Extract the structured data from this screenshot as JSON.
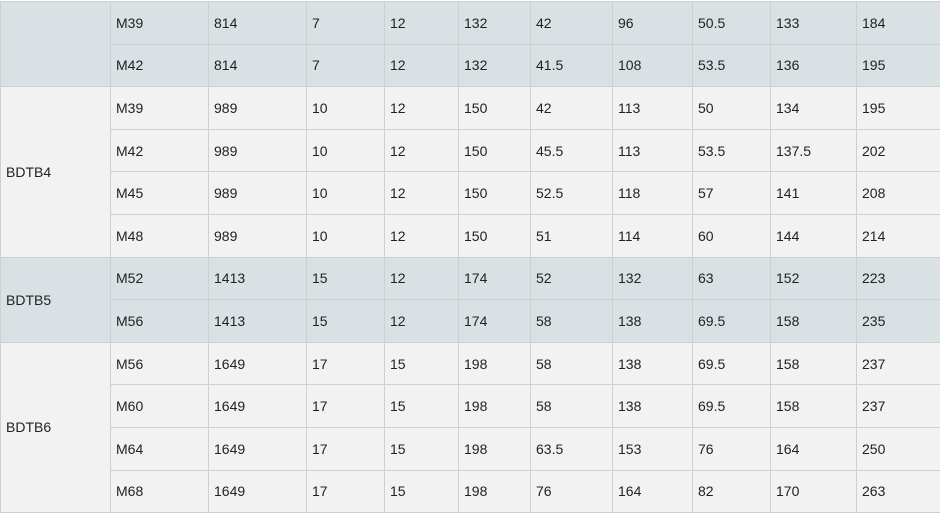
{
  "colors": {
    "shaded": "#d9e1e4",
    "light": "#f2f2f2",
    "border": "#cfcfcf"
  },
  "groups": [
    {
      "label": "",
      "shaded": true,
      "rows": [
        [
          "M39",
          "814",
          "7",
          "12",
          "132",
          "42",
          "96",
          "50.5",
          "133",
          "184"
        ],
        [
          "M42",
          "814",
          "7",
          "12",
          "132",
          "41.5",
          "108",
          "53.5",
          "136",
          "195"
        ]
      ]
    },
    {
      "label": "BDTB4",
      "shaded": false,
      "rows": [
        [
          "M39",
          "989",
          "10",
          "12",
          "150",
          "42",
          "113",
          "50",
          "134",
          "195"
        ],
        [
          "M42",
          "989",
          "10",
          "12",
          "150",
          "45.5",
          "113",
          "53.5",
          "137.5",
          "202"
        ],
        [
          "M45",
          "989",
          "10",
          "12",
          "150",
          "52.5",
          "118",
          "57",
          "141",
          "208"
        ],
        [
          "M48",
          "989",
          "10",
          "12",
          "150",
          "51",
          "114",
          "60",
          "144",
          "214"
        ]
      ]
    },
    {
      "label": "BDTB5",
      "shaded": true,
      "rows": [
        [
          "M52",
          "1413",
          "15",
          "12",
          "174",
          "52",
          "132",
          "63",
          "152",
          "223"
        ],
        [
          "M56",
          "1413",
          "15",
          "12",
          "174",
          "58",
          "138",
          "69.5",
          "158",
          "235"
        ]
      ]
    },
    {
      "label": "BDTB6",
      "shaded": false,
      "rows": [
        [
          "M56",
          "1649",
          "17",
          "15",
          "198",
          "58",
          "138",
          "69.5",
          "158",
          "237"
        ],
        [
          "M60",
          "1649",
          "17",
          "15",
          "198",
          "58",
          "138",
          "69.5",
          "158",
          "237"
        ],
        [
          "M64",
          "1649",
          "17",
          "15",
          "198",
          "63.5",
          "153",
          "76",
          "164",
          "250"
        ],
        [
          "M68",
          "1649",
          "17",
          "15",
          "198",
          "76",
          "164",
          "82",
          "170",
          "263"
        ]
      ]
    }
  ]
}
